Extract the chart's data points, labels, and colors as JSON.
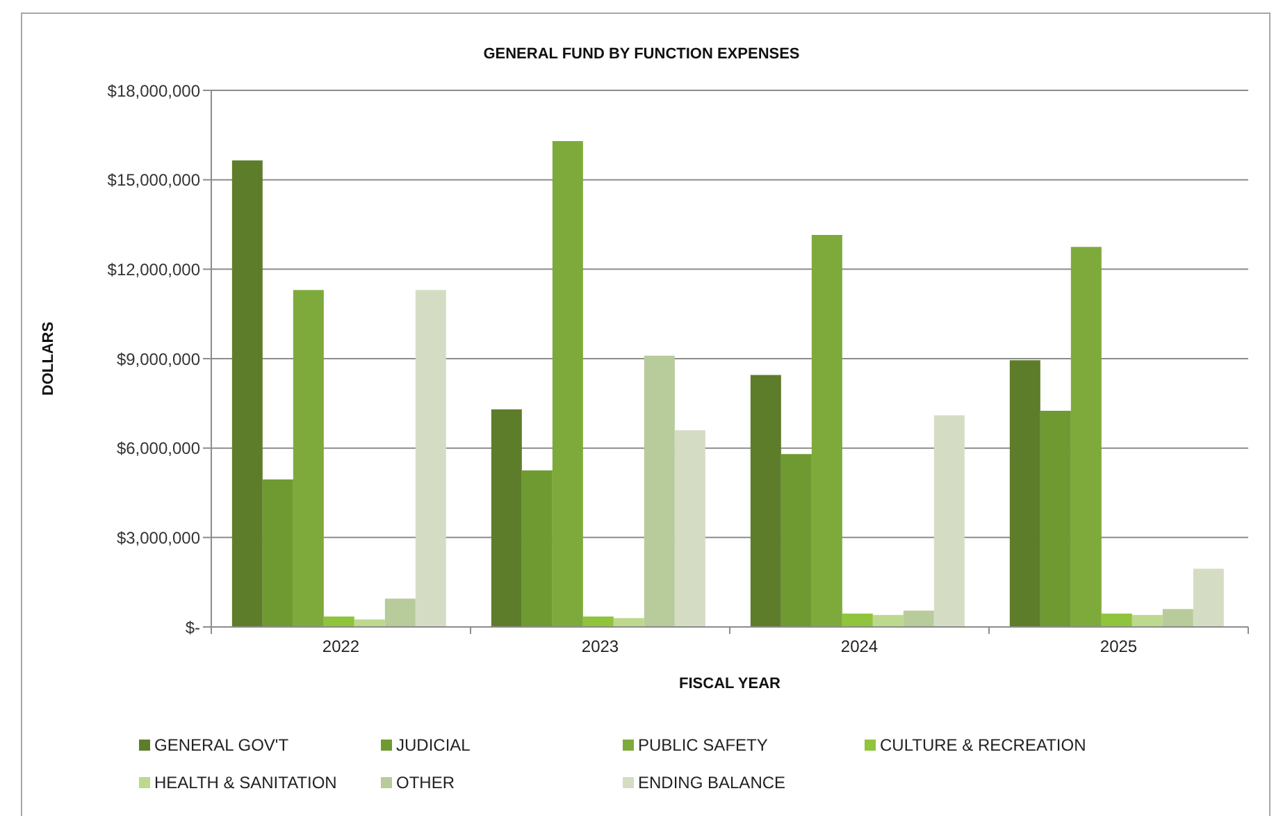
{
  "chart_data": {
    "type": "bar",
    "title": "GENERAL FUND BY FUNCTION EXPENSES",
    "xlabel": "FISCAL YEAR",
    "ylabel": "DOLLARS",
    "categories": [
      "2022",
      "2023",
      "2024",
      "2025"
    ],
    "series": [
      {
        "name": "GENERAL GOV'T",
        "color": "#5e7d2b",
        "values": [
          15650000,
          7300000,
          8450000,
          8950000
        ]
      },
      {
        "name": "JUDICIAL",
        "color": "#6f9a31",
        "values": [
          4950000,
          5250000,
          5800000,
          7250000
        ]
      },
      {
        "name": "PUBLIC SAFETY",
        "color": "#7eaa3b",
        "values": [
          11300000,
          16300000,
          13150000,
          12750000
        ]
      },
      {
        "name": "CULTURE & RECREATION",
        "color": "#8fc43c",
        "values": [
          350000,
          350000,
          450000,
          450000
        ]
      },
      {
        "name": "HEALTH & SANITATION",
        "color": "#bcd98e",
        "values": [
          250000,
          300000,
          400000,
          400000
        ]
      },
      {
        "name": "OTHER",
        "color": "#b7cb9b",
        "values": [
          950000,
          9100000,
          550000,
          600000
        ]
      },
      {
        "name": "ENDING BALANCE",
        "color": "#d4ddc4",
        "values": [
          11300000,
          6600000,
          7100000,
          1950000
        ]
      }
    ],
    "ylim": [
      0,
      18000000
    ],
    "yticks": [
      {
        "value": 0,
        "label": "$-"
      },
      {
        "value": 3000000,
        "label": "$3,000,000"
      },
      {
        "value": 6000000,
        "label": "$6,000,000"
      },
      {
        "value": 9000000,
        "label": "$9,000,000"
      },
      {
        "value": 12000000,
        "label": "$12,000,000"
      },
      {
        "value": 15000000,
        "label": "$15,000,000"
      },
      {
        "value": 18000000,
        "label": "$18,000,000"
      }
    ],
    "grid": "y",
    "legend": "bottom"
  }
}
